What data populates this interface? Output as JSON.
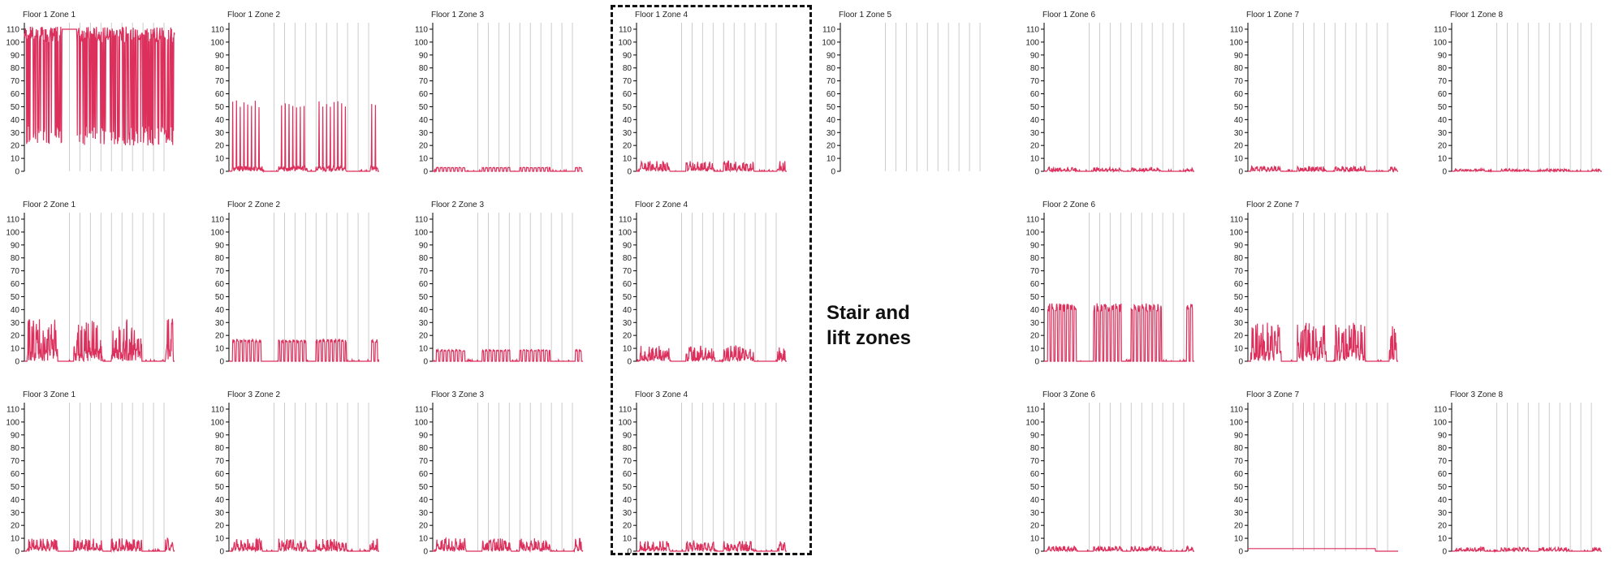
{
  "colors": {
    "series": "#dc2f5c",
    "gridline": "#cccccc",
    "axis": "#000000",
    "annotation": "#111111"
  },
  "annotation": {
    "text": "Stair and\nlift zones"
  },
  "chart_data": {
    "type": "line",
    "ylim": [
      0,
      115
    ],
    "yticks": [
      0,
      10,
      20,
      30,
      40,
      50,
      60,
      70,
      80,
      90,
      100,
      110
    ],
    "grid": "vertical lines at day boundaries",
    "xlabel": "",
    "ylabel": "",
    "panels": [
      {
        "title": "Floor 1 Zone 1",
        "row": 0,
        "col": 0,
        "pattern": "high",
        "peak": 113
      },
      {
        "title": "Floor 1 Zone 2",
        "row": 0,
        "col": 1,
        "pattern": "spiky",
        "peak": 55
      },
      {
        "title": "Floor 1 Zone 3",
        "row": 0,
        "col": 2,
        "pattern": "blocks",
        "peak": 3
      },
      {
        "title": "Floor 1 Zone 4",
        "row": 0,
        "col": 3,
        "pattern": "noisy",
        "peak": 8
      },
      {
        "title": "Floor 1 Zone 5",
        "row": 0,
        "col": 4,
        "pattern": "empty",
        "peak": 0
      },
      {
        "title": "Floor 1 Zone 6",
        "row": 0,
        "col": 5,
        "pattern": "noisy",
        "peak": 3
      },
      {
        "title": "Floor 1 Zone 7",
        "row": 0,
        "col": 6,
        "pattern": "noisy",
        "peak": 4
      },
      {
        "title": "Floor 1 Zone 8",
        "row": 0,
        "col": 7,
        "pattern": "noisy",
        "peak": 2
      },
      {
        "title": "Floor 2 Zone 1",
        "row": 1,
        "col": 0,
        "pattern": "noisy",
        "peak": 33
      },
      {
        "title": "Floor 2 Zone 2",
        "row": 1,
        "col": 1,
        "pattern": "blocks",
        "peak": 17
      },
      {
        "title": "Floor 2 Zone 3",
        "row": 1,
        "col": 2,
        "pattern": "blocks",
        "peak": 9
      },
      {
        "title": "Floor 2 Zone 4",
        "row": 1,
        "col": 3,
        "pattern": "noisy",
        "peak": 12
      },
      {
        "title": "Floor 2 Zone 6",
        "row": 1,
        "col": 5,
        "pattern": "blocks",
        "peak": 45
      },
      {
        "title": "Floor 2 Zone 7",
        "row": 1,
        "col": 6,
        "pattern": "noisy",
        "peak": 30
      },
      {
        "title": "Floor 3 Zone 1",
        "row": 2,
        "col": 0,
        "pattern": "noisy",
        "peak": 10
      },
      {
        "title": "Floor 3 Zone 2",
        "row": 2,
        "col": 1,
        "pattern": "noisy",
        "peak": 10
      },
      {
        "title": "Floor 3 Zone 3",
        "row": 2,
        "col": 2,
        "pattern": "noisy",
        "peak": 10
      },
      {
        "title": "Floor 3 Zone 4",
        "row": 2,
        "col": 3,
        "pattern": "noisy",
        "peak": 8
      },
      {
        "title": "Floor 3 Zone 6",
        "row": 2,
        "col": 5,
        "pattern": "noisy",
        "peak": 4
      },
      {
        "title": "Floor 3 Zone 7",
        "row": 2,
        "col": 6,
        "pattern": "flat",
        "peak": 2
      },
      {
        "title": "Floor 3 Zone 8",
        "row": 2,
        "col": 7,
        "pattern": "noisy",
        "peak": 3
      }
    ]
  }
}
